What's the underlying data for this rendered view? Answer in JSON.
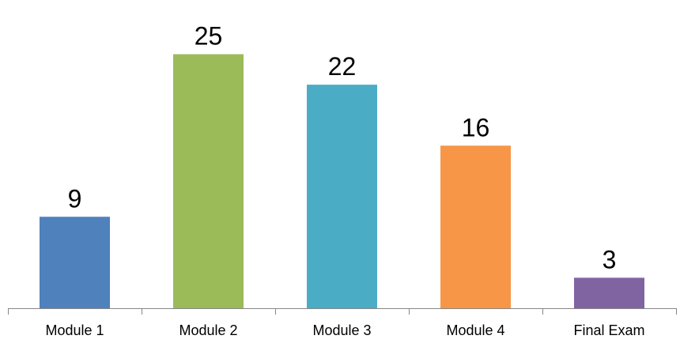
{
  "chart_data": {
    "type": "bar",
    "title": "",
    "xlabel": "",
    "ylabel": "",
    "categories": [
      "Module 1",
      "Module 2",
      "Module 3",
      "Module 4",
      "Final Exam"
    ],
    "values": [
      9,
      25,
      22,
      16,
      3
    ],
    "colors": [
      "#4f81bd",
      "#9bbb59",
      "#4bacc6",
      "#f79646",
      "#8064a2"
    ],
    "ylim": [
      0,
      28
    ],
    "grid": false,
    "legend": "none",
    "data_labels": true
  }
}
